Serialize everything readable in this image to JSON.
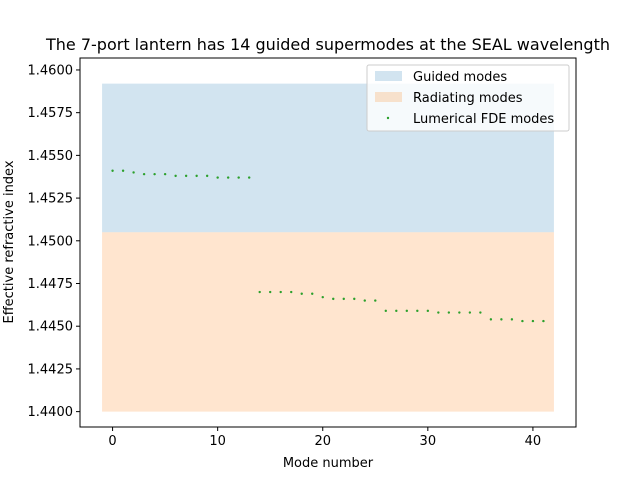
{
  "chart_data": {
    "type": "scatter",
    "title": "The 7-port lantern has 14 guided supermodes at the SEAL wavelength",
    "xlabel": "Mode number",
    "ylabel": "Effective refractive index",
    "xlim": [
      -3.1,
      44.1
    ],
    "ylim": [
      1.4391,
      1.4607
    ],
    "xticks": [
      0,
      10,
      20,
      30,
      40
    ],
    "yticks": [
      1.44,
      1.4425,
      1.445,
      1.4475,
      1.45,
      1.4525,
      1.455,
      1.4575,
      1.46
    ],
    "ytick_labels": [
      "1.4400",
      "1.4425",
      "1.4450",
      "1.4475",
      "1.4500",
      "1.4525",
      "1.4550",
      "1.4575",
      "1.4600"
    ],
    "grid": false,
    "legend_position": "top-right",
    "regions": [
      {
        "name": "Guided modes",
        "color": "#1f77b4",
        "x": [
          -1,
          42
        ],
        "y": [
          1.4505,
          1.4592
        ]
      },
      {
        "name": "Radiating modes",
        "color": "#ff7f0e",
        "x": [
          -1,
          42
        ],
        "y": [
          1.44,
          1.4505
        ]
      }
    ],
    "series": [
      {
        "name": "Lumerical FDE modes",
        "color": "#2ca02c",
        "x": [
          0,
          1,
          2,
          3,
          4,
          5,
          6,
          7,
          8,
          9,
          10,
          11,
          12,
          13,
          14,
          15,
          16,
          17,
          18,
          19,
          20,
          21,
          22,
          23,
          24,
          25,
          26,
          27,
          28,
          29,
          30,
          31,
          32,
          33,
          34,
          35,
          36,
          37,
          38,
          39,
          40,
          41
        ],
        "y": [
          1.4541,
          1.4541,
          1.454,
          1.4539,
          1.4539,
          1.4539,
          1.4538,
          1.4538,
          1.4538,
          1.4538,
          1.4537,
          1.4537,
          1.4537,
          1.4537,
          1.447,
          1.447,
          1.447,
          1.447,
          1.4469,
          1.4469,
          1.4467,
          1.4466,
          1.4466,
          1.4466,
          1.4465,
          1.4465,
          1.4459,
          1.4459,
          1.4459,
          1.4459,
          1.4459,
          1.4458,
          1.4458,
          1.4458,
          1.4458,
          1.4458,
          1.4454,
          1.4454,
          1.4454,
          1.4453,
          1.4453,
          1.4453
        ]
      }
    ]
  }
}
